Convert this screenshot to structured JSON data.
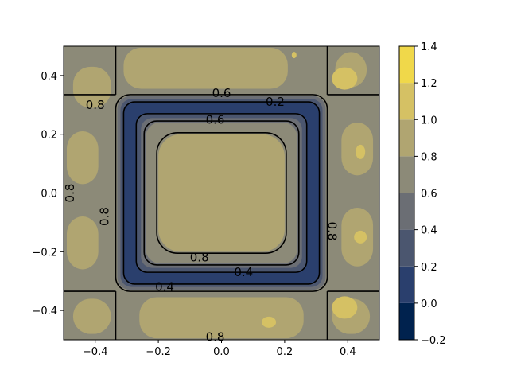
{
  "chart_data": {
    "type": "heatmap",
    "subtype": "filled-contour",
    "title": "",
    "xlabel": "",
    "ylabel": "",
    "xlim": [
      -0.5,
      0.5
    ],
    "ylim": [
      -0.5,
      0.5
    ],
    "x_ticks": [
      -0.4,
      -0.2,
      0.0,
      0.2,
      0.4
    ],
    "x_tick_labels": [
      "−0.4",
      "−0.2",
      "0.0",
      "0.2",
      "0.4"
    ],
    "y_ticks": [
      -0.4,
      -0.2,
      0.0,
      0.2,
      0.4
    ],
    "y_tick_labels": [
      "−0.4",
      "−0.2",
      "0.0",
      "0.2",
      "0.4"
    ],
    "grid": false,
    "colormap": "cividis",
    "levels": [
      -0.2,
      0.0,
      0.2,
      0.4,
      0.6,
      0.8,
      1.0,
      1.2,
      1.4
    ],
    "level_colors": [
      "#00224e",
      "#2a3f6d",
      "#4b566f",
      "#6b6e74",
      "#8c8a78",
      "#b0a571",
      "#d5c164",
      "#f0d84a"
    ],
    "colorbar_ticks": [
      -0.2,
      0.0,
      0.2,
      0.4,
      0.6,
      0.8,
      1.0,
      1.2,
      1.4
    ],
    "colorbar_tick_labels": [
      "−0.2",
      "0.0",
      "0.2",
      "0.4",
      "0.6",
      "0.8",
      "1.0",
      "1.2",
      "1.4"
    ],
    "contour_line_levels": [
      0.2,
      0.4,
      0.6,
      0.8
    ],
    "contour_labels": [
      {
        "text": "0.8",
        "x": -0.4,
        "y": 0.3
      },
      {
        "text": "0.6",
        "x": 0.0,
        "y": 0.34
      },
      {
        "text": "0.2",
        "x": 0.17,
        "y": 0.31
      },
      {
        "text": "0.6",
        "x": -0.02,
        "y": 0.25
      },
      {
        "text": "0.8",
        "x": -0.48,
        "y": 0.0
      },
      {
        "text": "0.8",
        "x": -0.37,
        "y": -0.08
      },
      {
        "text": "0.8",
        "x": -0.07,
        "y": -0.22
      },
      {
        "text": "0.4",
        "x": 0.07,
        "y": -0.27
      },
      {
        "text": "0.4",
        "x": -0.18,
        "y": -0.32
      },
      {
        "text": "0.8",
        "x": 0.35,
        "y": -0.13
      },
      {
        "text": "0.8",
        "x": -0.02,
        "y": -0.49
      }
    ],
    "regions": {
      "outer_background": 0.9,
      "frame_square_half_width": 0.32,
      "trough_value": 0.1,
      "interior_square_half_width": 0.2,
      "interior_value": 1.1,
      "hot_spots": [
        {
          "x": 0.39,
          "y": 0.39,
          "value": 1.25
        },
        {
          "x": 0.39,
          "y": -0.39,
          "value": 1.25
        },
        {
          "x": 0.44,
          "y": 0.14,
          "value": 1.25
        },
        {
          "x": 0.44,
          "y": -0.15,
          "value": 1.25
        },
        {
          "x": 0.15,
          "y": -0.44,
          "value": 1.25
        },
        {
          "x": 0.23,
          "y": 0.47,
          "value": 1.25
        }
      ]
    }
  }
}
